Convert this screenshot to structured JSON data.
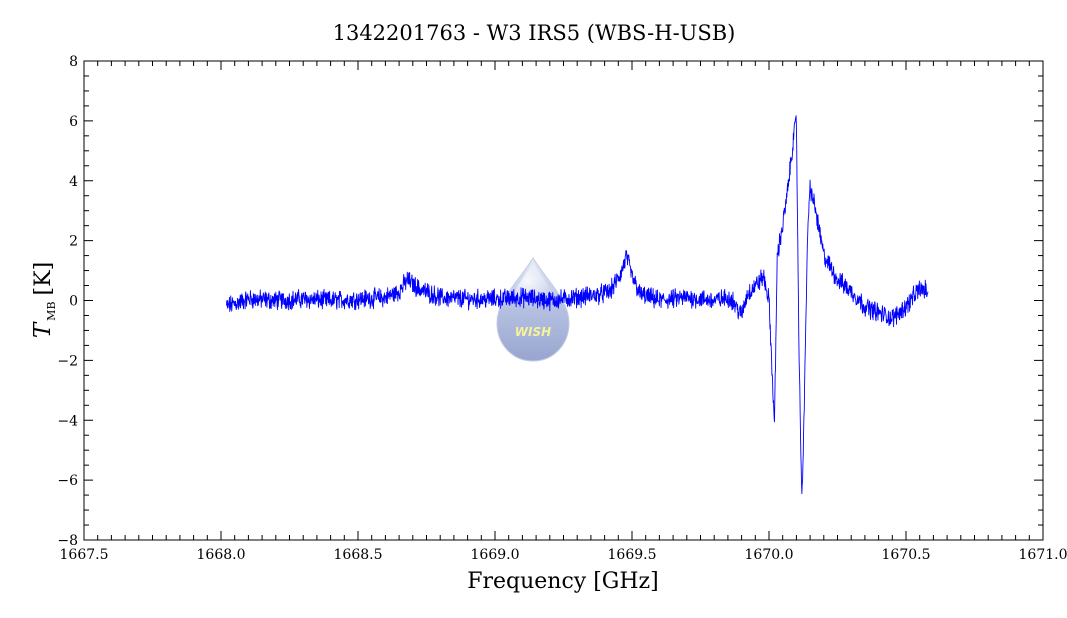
{
  "chart_data": {
    "type": "line",
    "title": "1342201763 - W3 IRS5 (WBS-H-USB)",
    "xlabel": "Frequency [GHz]",
    "ylabel": {
      "symbol": "T",
      "subscript": "MB",
      "unit": "[K]"
    },
    "xlim": [
      1667.5,
      1671.0
    ],
    "ylim": [
      -8,
      8
    ],
    "xticks": [
      1667.5,
      1668.0,
      1668.5,
      1669.0,
      1669.5,
      1670.0,
      1670.5,
      1671.0
    ],
    "xtick_labels": [
      "1667.5",
      "1668.0",
      "1668.5",
      "1669.0",
      "1669.5",
      "1670.0",
      "1670.5",
      "1671.0"
    ],
    "yticks": [
      -8,
      -6,
      -4,
      -2,
      0,
      2,
      4,
      6,
      8
    ],
    "ytick_labels": [
      "−8",
      "−6",
      "−4",
      "−2",
      "0",
      "2",
      "4",
      "6",
      "8"
    ],
    "grid": false,
    "series": [
      {
        "color": "#0000ff",
        "x": [
          1668.02,
          1668.1,
          1668.2,
          1668.3,
          1668.4,
          1668.5,
          1668.6,
          1668.65,
          1668.68,
          1668.72,
          1668.8,
          1668.9,
          1669.0,
          1669.1,
          1669.2,
          1669.3,
          1669.38,
          1669.42,
          1669.46,
          1669.48,
          1669.5,
          1669.53,
          1669.6,
          1669.7,
          1669.8,
          1669.86,
          1669.9,
          1669.92,
          1669.95,
          1669.98,
          1670.0,
          1670.02,
          1670.03,
          1670.05,
          1670.07,
          1670.09,
          1670.1,
          1670.11,
          1670.12,
          1670.13,
          1670.14,
          1670.15,
          1670.17,
          1670.2,
          1670.25,
          1670.3,
          1670.35,
          1670.4,
          1670.45,
          1670.5,
          1670.55,
          1670.58
        ],
        "y": [
          -0.2,
          0.05,
          0.0,
          0.05,
          0.0,
          0.05,
          0.1,
          0.3,
          0.7,
          0.4,
          0.1,
          0.05,
          0.05,
          0.1,
          0.0,
          0.1,
          0.2,
          0.3,
          0.9,
          1.5,
          0.8,
          0.2,
          0.0,
          0.1,
          0.0,
          0.1,
          -0.5,
          0.2,
          0.5,
          0.8,
          0.0,
          -4.2,
          1.5,
          2.5,
          3.8,
          5.5,
          6.0,
          -2.0,
          -6.7,
          -3.0,
          2.0,
          3.8,
          3.0,
          1.5,
          0.7,
          0.3,
          -0.2,
          -0.4,
          -0.6,
          -0.2,
          0.4,
          0.3
        ]
      }
    ]
  },
  "watermark": {
    "text": "WISH",
    "icon": "water-drop-logo"
  }
}
